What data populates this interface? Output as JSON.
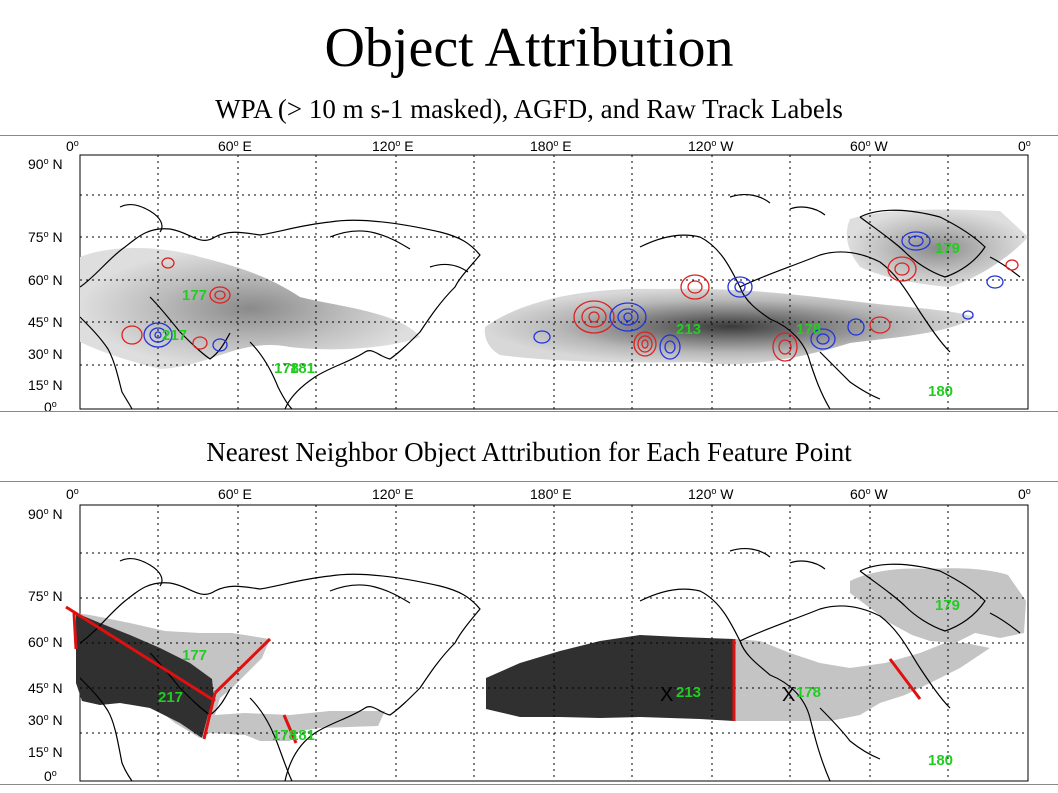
{
  "title": "Object Attribution",
  "top_panel": {
    "subtitle": "WPA (> 10 m s-1 masked), AGFD, and Raw Track Labels",
    "track_labels": [
      "177",
      "217",
      "178",
      "181",
      "213",
      "178",
      "179",
      "180"
    ]
  },
  "bottom_panel": {
    "subtitle": "Nearest Neighbor Object Attribution for Each Feature Point",
    "track_labels": [
      "177",
      "217",
      "178",
      "181",
      "213",
      "178",
      "179",
      "180"
    ],
    "markers": [
      "X",
      "X"
    ]
  },
  "map_axes": {
    "lon_labels": [
      "0",
      "60",
      "E",
      "120",
      "E",
      "180",
      "E",
      "120",
      "W",
      "60",
      "W",
      "0"
    ],
    "lon_ticks": [
      {
        "num": "0",
        "dir": ""
      },
      {
        "num": "60",
        "dir": "E"
      },
      {
        "num": "120",
        "dir": "E"
      },
      {
        "num": "180",
        "dir": "E"
      },
      {
        "num": "120",
        "dir": "W"
      },
      {
        "num": "60",
        "dir": "W"
      },
      {
        "num": "0",
        "dir": ""
      }
    ],
    "lat_ticks": [
      {
        "num": "90",
        "dir": "N"
      },
      {
        "num": "75",
        "dir": "N"
      },
      {
        "num": "60",
        "dir": "N"
      },
      {
        "num": "45",
        "dir": "N"
      },
      {
        "num": "30",
        "dir": "N"
      },
      {
        "num": "15",
        "dir": "N"
      },
      {
        "num": "0",
        "dir": ""
      }
    ]
  },
  "colors": {
    "label_green": "#22cc22",
    "contour_red": "#dd2222",
    "contour_blue": "#2233dd",
    "object_dark": "#303030",
    "object_light": "#c4c4c4",
    "boundary_red": "#e01010"
  }
}
